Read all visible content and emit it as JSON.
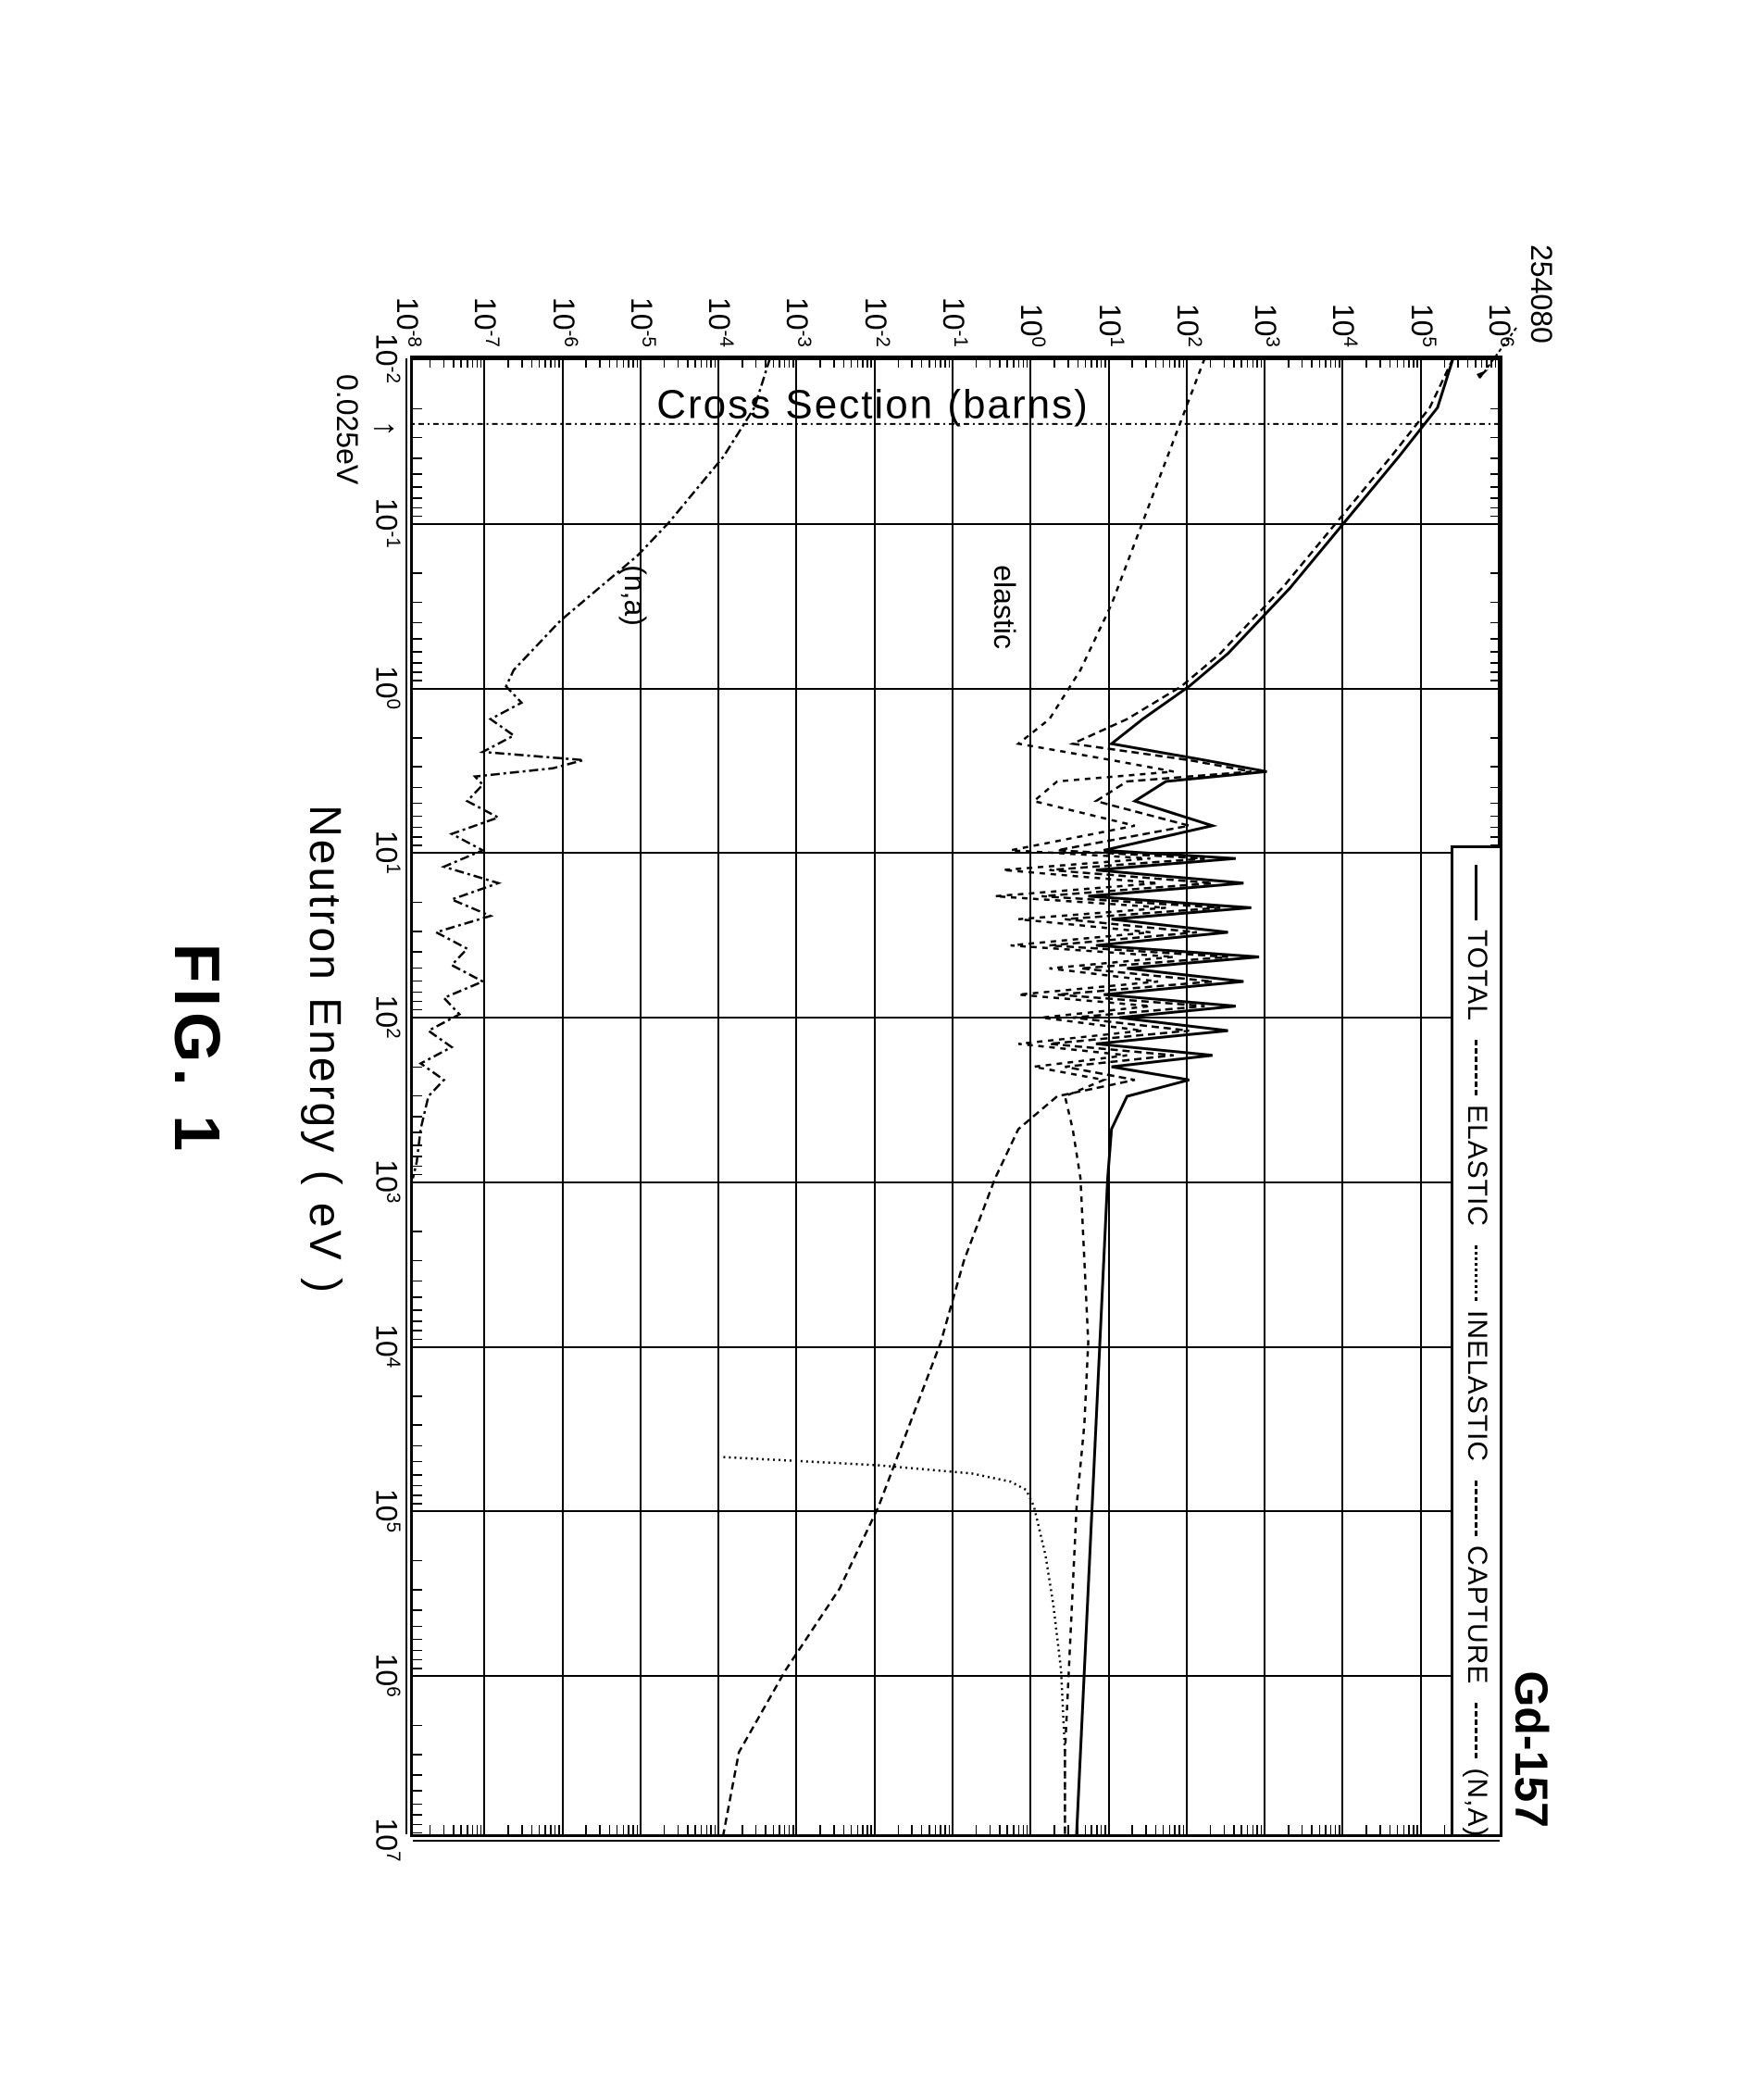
{
  "figure_label": "FIG. 1",
  "isotope": "Gd-157",
  "xlabel": "Neutron Energy ( eV )",
  "ylabel": "Cross Section (barns)",
  "callout_y_value": "254080",
  "thermal_marker_label": "0.025eV",
  "annotations": {
    "elastic": "elastic",
    "na": "(n,a)"
  },
  "legend": [
    {
      "label": "TOTAL",
      "dash": "solid"
    },
    {
      "label": "ELASTIC",
      "dash": "dashed"
    },
    {
      "label": "INELASTIC",
      "dash": "dotted"
    },
    {
      "label": "CAPTURE",
      "dash": "dashed"
    },
    {
      "label": "(N,A)",
      "dash": "dash-dot"
    }
  ],
  "axes": {
    "x": {
      "log": true,
      "min_exp": -2,
      "max_exp": 7,
      "tick_exps": [
        -2,
        -1,
        0,
        1,
        2,
        3,
        4,
        5,
        6,
        7
      ]
    },
    "y": {
      "log": true,
      "min_exp": -8,
      "max_exp": 6,
      "tick_exps": [
        -8,
        -7,
        -6,
        -5,
        -4,
        -3,
        -2,
        -1,
        0,
        1,
        2,
        3,
        4,
        5,
        6
      ]
    }
  },
  "colors": {
    "ink": "#000000",
    "bg": "#ffffff"
  },
  "fontsize": {
    "title": 50,
    "axis_label": 46,
    "tick": 32,
    "legend": 30,
    "fig": 70
  },
  "chart_type": "line-loglog",
  "series": {
    "total": {
      "dash": "solid",
      "width": 3,
      "points": [
        [
          -2,
          5.4
        ],
        [
          -1.7,
          5.2
        ],
        [
          -1.4,
          4.7
        ],
        [
          -1.0,
          4.0
        ],
        [
          -0.6,
          3.3
        ],
        [
          -0.2,
          2.5
        ],
        [
          0.0,
          2.0
        ],
        [
          0.2,
          1.4
        ],
        [
          0.35,
          1.0
        ],
        [
          0.45,
          2.2
        ],
        [
          0.52,
          3.0
        ],
        [
          0.58,
          1.7
        ],
        [
          0.7,
          1.3
        ],
        [
          0.85,
          2.3
        ],
        [
          1.0,
          0.9
        ],
        [
          1.05,
          2.6
        ],
        [
          1.12,
          0.8
        ],
        [
          1.2,
          2.7
        ],
        [
          1.28,
          0.7
        ],
        [
          1.35,
          2.8
        ],
        [
          1.42,
          1.0
        ],
        [
          1.5,
          2.5
        ],
        [
          1.58,
          0.8
        ],
        [
          1.65,
          2.9
        ],
        [
          1.72,
          1.2
        ],
        [
          1.8,
          2.7
        ],
        [
          1.88,
          0.9
        ],
        [
          1.95,
          2.6
        ],
        [
          2.02,
          1.1
        ],
        [
          2.1,
          2.5
        ],
        [
          2.18,
          0.8
        ],
        [
          2.25,
          2.3
        ],
        [
          2.32,
          1.0
        ],
        [
          2.4,
          2.0
        ],
        [
          2.5,
          1.2
        ],
        [
          2.7,
          1.0
        ],
        [
          3.0,
          0.95
        ],
        [
          3.5,
          0.9
        ],
        [
          4.0,
          0.85
        ],
        [
          4.5,
          0.8
        ],
        [
          5.0,
          0.75
        ],
        [
          5.5,
          0.7
        ],
        [
          6.0,
          0.65
        ],
        [
          6.5,
          0.6
        ],
        [
          7.0,
          0.55
        ]
      ]
    },
    "elastic": {
      "dash": "6,6",
      "width": 2.5,
      "points": [
        [
          -2,
          2.2
        ],
        [
          -1.5,
          1.8
        ],
        [
          -1.0,
          1.4
        ],
        [
          -0.5,
          1.0
        ],
        [
          -0.1,
          0.6
        ],
        [
          0.2,
          0.2
        ],
        [
          0.35,
          -0.2
        ],
        [
          0.45,
          1.0
        ],
        [
          0.52,
          1.8
        ],
        [
          0.58,
          0.3
        ],
        [
          0.7,
          0.0
        ],
        [
          0.85,
          1.3
        ],
        [
          1.0,
          -0.3
        ],
        [
          1.05,
          1.5
        ],
        [
          1.12,
          -0.4
        ],
        [
          1.2,
          1.6
        ],
        [
          1.28,
          -0.5
        ],
        [
          1.35,
          1.7
        ],
        [
          1.42,
          -0.2
        ],
        [
          1.5,
          1.5
        ],
        [
          1.58,
          -0.3
        ],
        [
          1.65,
          1.8
        ],
        [
          1.72,
          0.2
        ],
        [
          1.8,
          1.6
        ],
        [
          1.88,
          -0.2
        ],
        [
          1.95,
          1.5
        ],
        [
          2.02,
          0.1
        ],
        [
          2.1,
          1.4
        ],
        [
          2.18,
          -0.2
        ],
        [
          2.25,
          1.2
        ],
        [
          2.32,
          0.0
        ],
        [
          2.4,
          0.9
        ],
        [
          2.5,
          0.4
        ],
        [
          2.7,
          0.5
        ],
        [
          3.0,
          0.6
        ],
        [
          3.5,
          0.65
        ],
        [
          4.0,
          0.7
        ],
        [
          4.5,
          0.65
        ],
        [
          5.0,
          0.55
        ],
        [
          5.5,
          0.5
        ],
        [
          6.0,
          0.45
        ],
        [
          6.5,
          0.4
        ],
        [
          7.0,
          0.4
        ]
      ]
    },
    "capture": {
      "dash": "8,5",
      "width": 2.5,
      "points": [
        [
          -2,
          5.4
        ],
        [
          -1.7,
          5.1
        ],
        [
          -1.4,
          4.6
        ],
        [
          -1.0,
          3.9
        ],
        [
          -0.6,
          3.2
        ],
        [
          -0.2,
          2.4
        ],
        [
          0.0,
          1.9
        ],
        [
          0.2,
          1.2
        ],
        [
          0.35,
          0.5
        ],
        [
          0.45,
          2.0
        ],
        [
          0.52,
          2.8
        ],
        [
          0.58,
          1.2
        ],
        [
          0.7,
          0.8
        ],
        [
          0.85,
          2.0
        ],
        [
          1.0,
          0.3
        ],
        [
          1.05,
          2.2
        ],
        [
          1.12,
          0.2
        ],
        [
          1.2,
          2.3
        ],
        [
          1.28,
          0.1
        ],
        [
          1.35,
          2.4
        ],
        [
          1.42,
          0.4
        ],
        [
          1.5,
          2.1
        ],
        [
          1.58,
          0.2
        ],
        [
          1.65,
          2.5
        ],
        [
          1.72,
          0.6
        ],
        [
          1.8,
          2.3
        ],
        [
          1.88,
          0.3
        ],
        [
          1.95,
          2.2
        ],
        [
          2.02,
          0.5
        ],
        [
          2.1,
          2.0
        ],
        [
          2.18,
          0.2
        ],
        [
          2.25,
          1.8
        ],
        [
          2.32,
          0.4
        ],
        [
          2.4,
          1.3
        ],
        [
          2.5,
          0.3
        ],
        [
          2.7,
          -0.2
        ],
        [
          3.0,
          -0.5
        ],
        [
          3.5,
          -0.9
        ],
        [
          4.0,
          -1.2
        ],
        [
          4.5,
          -1.6
        ],
        [
          5.0,
          -2.0
        ],
        [
          5.5,
          -2.5
        ],
        [
          6.0,
          -3.2
        ],
        [
          6.5,
          -3.8
        ],
        [
          7.0,
          -4.0
        ]
      ]
    },
    "inelastic": {
      "dash": "2,4",
      "width": 2.5,
      "points": [
        [
          4.7,
          -4.0
        ],
        [
          4.75,
          -2.0
        ],
        [
          4.8,
          -0.8
        ],
        [
          4.85,
          -0.3
        ],
        [
          4.9,
          -0.1
        ],
        [
          5.0,
          0.0
        ],
        [
          5.3,
          0.15
        ],
        [
          5.6,
          0.25
        ],
        [
          6.0,
          0.35
        ],
        [
          6.5,
          0.4
        ],
        [
          7.0,
          0.4
        ]
      ]
    },
    "na": {
      "dash": "10,4,3,4",
      "width": 2.5,
      "points": [
        [
          -2,
          -3.4
        ],
        [
          -1.7,
          -3.6
        ],
        [
          -1.4,
          -4.0
        ],
        [
          -1.0,
          -4.7
        ],
        [
          -0.8,
          -5.1
        ],
        [
          -0.6,
          -5.6
        ],
        [
          -0.4,
          -6.1
        ],
        [
          -0.2,
          -6.5
        ],
        [
          -0.1,
          -6.7
        ],
        [
          0.0,
          -6.8
        ],
        [
          0.1,
          -6.6
        ],
        [
          0.2,
          -7.0
        ],
        [
          0.3,
          -6.7
        ],
        [
          0.4,
          -7.1
        ],
        [
          0.45,
          -5.8
        ],
        [
          0.5,
          -6.2
        ],
        [
          0.55,
          -7.2
        ],
        [
          0.6,
          -7.1
        ],
        [
          0.7,
          -7.3
        ],
        [
          0.8,
          -6.9
        ],
        [
          0.9,
          -7.5
        ],
        [
          1.0,
          -7.1
        ],
        [
          1.1,
          -7.6
        ],
        [
          1.2,
          -6.9
        ],
        [
          1.3,
          -7.5
        ],
        [
          1.4,
          -7.0
        ],
        [
          1.5,
          -7.7
        ],
        [
          1.6,
          -7.3
        ],
        [
          1.7,
          -7.5
        ],
        [
          1.8,
          -7.1
        ],
        [
          1.9,
          -7.6
        ],
        [
          2.0,
          -7.4
        ],
        [
          2.1,
          -7.8
        ],
        [
          2.2,
          -7.5
        ],
        [
          2.3,
          -7.9
        ],
        [
          2.4,
          -7.6
        ],
        [
          2.5,
          -7.8
        ],
        [
          2.7,
          -7.9
        ],
        [
          2.9,
          -7.95
        ],
        [
          3.0,
          -8.0
        ]
      ]
    }
  },
  "thermal_marker_x_exp": -1.6
}
